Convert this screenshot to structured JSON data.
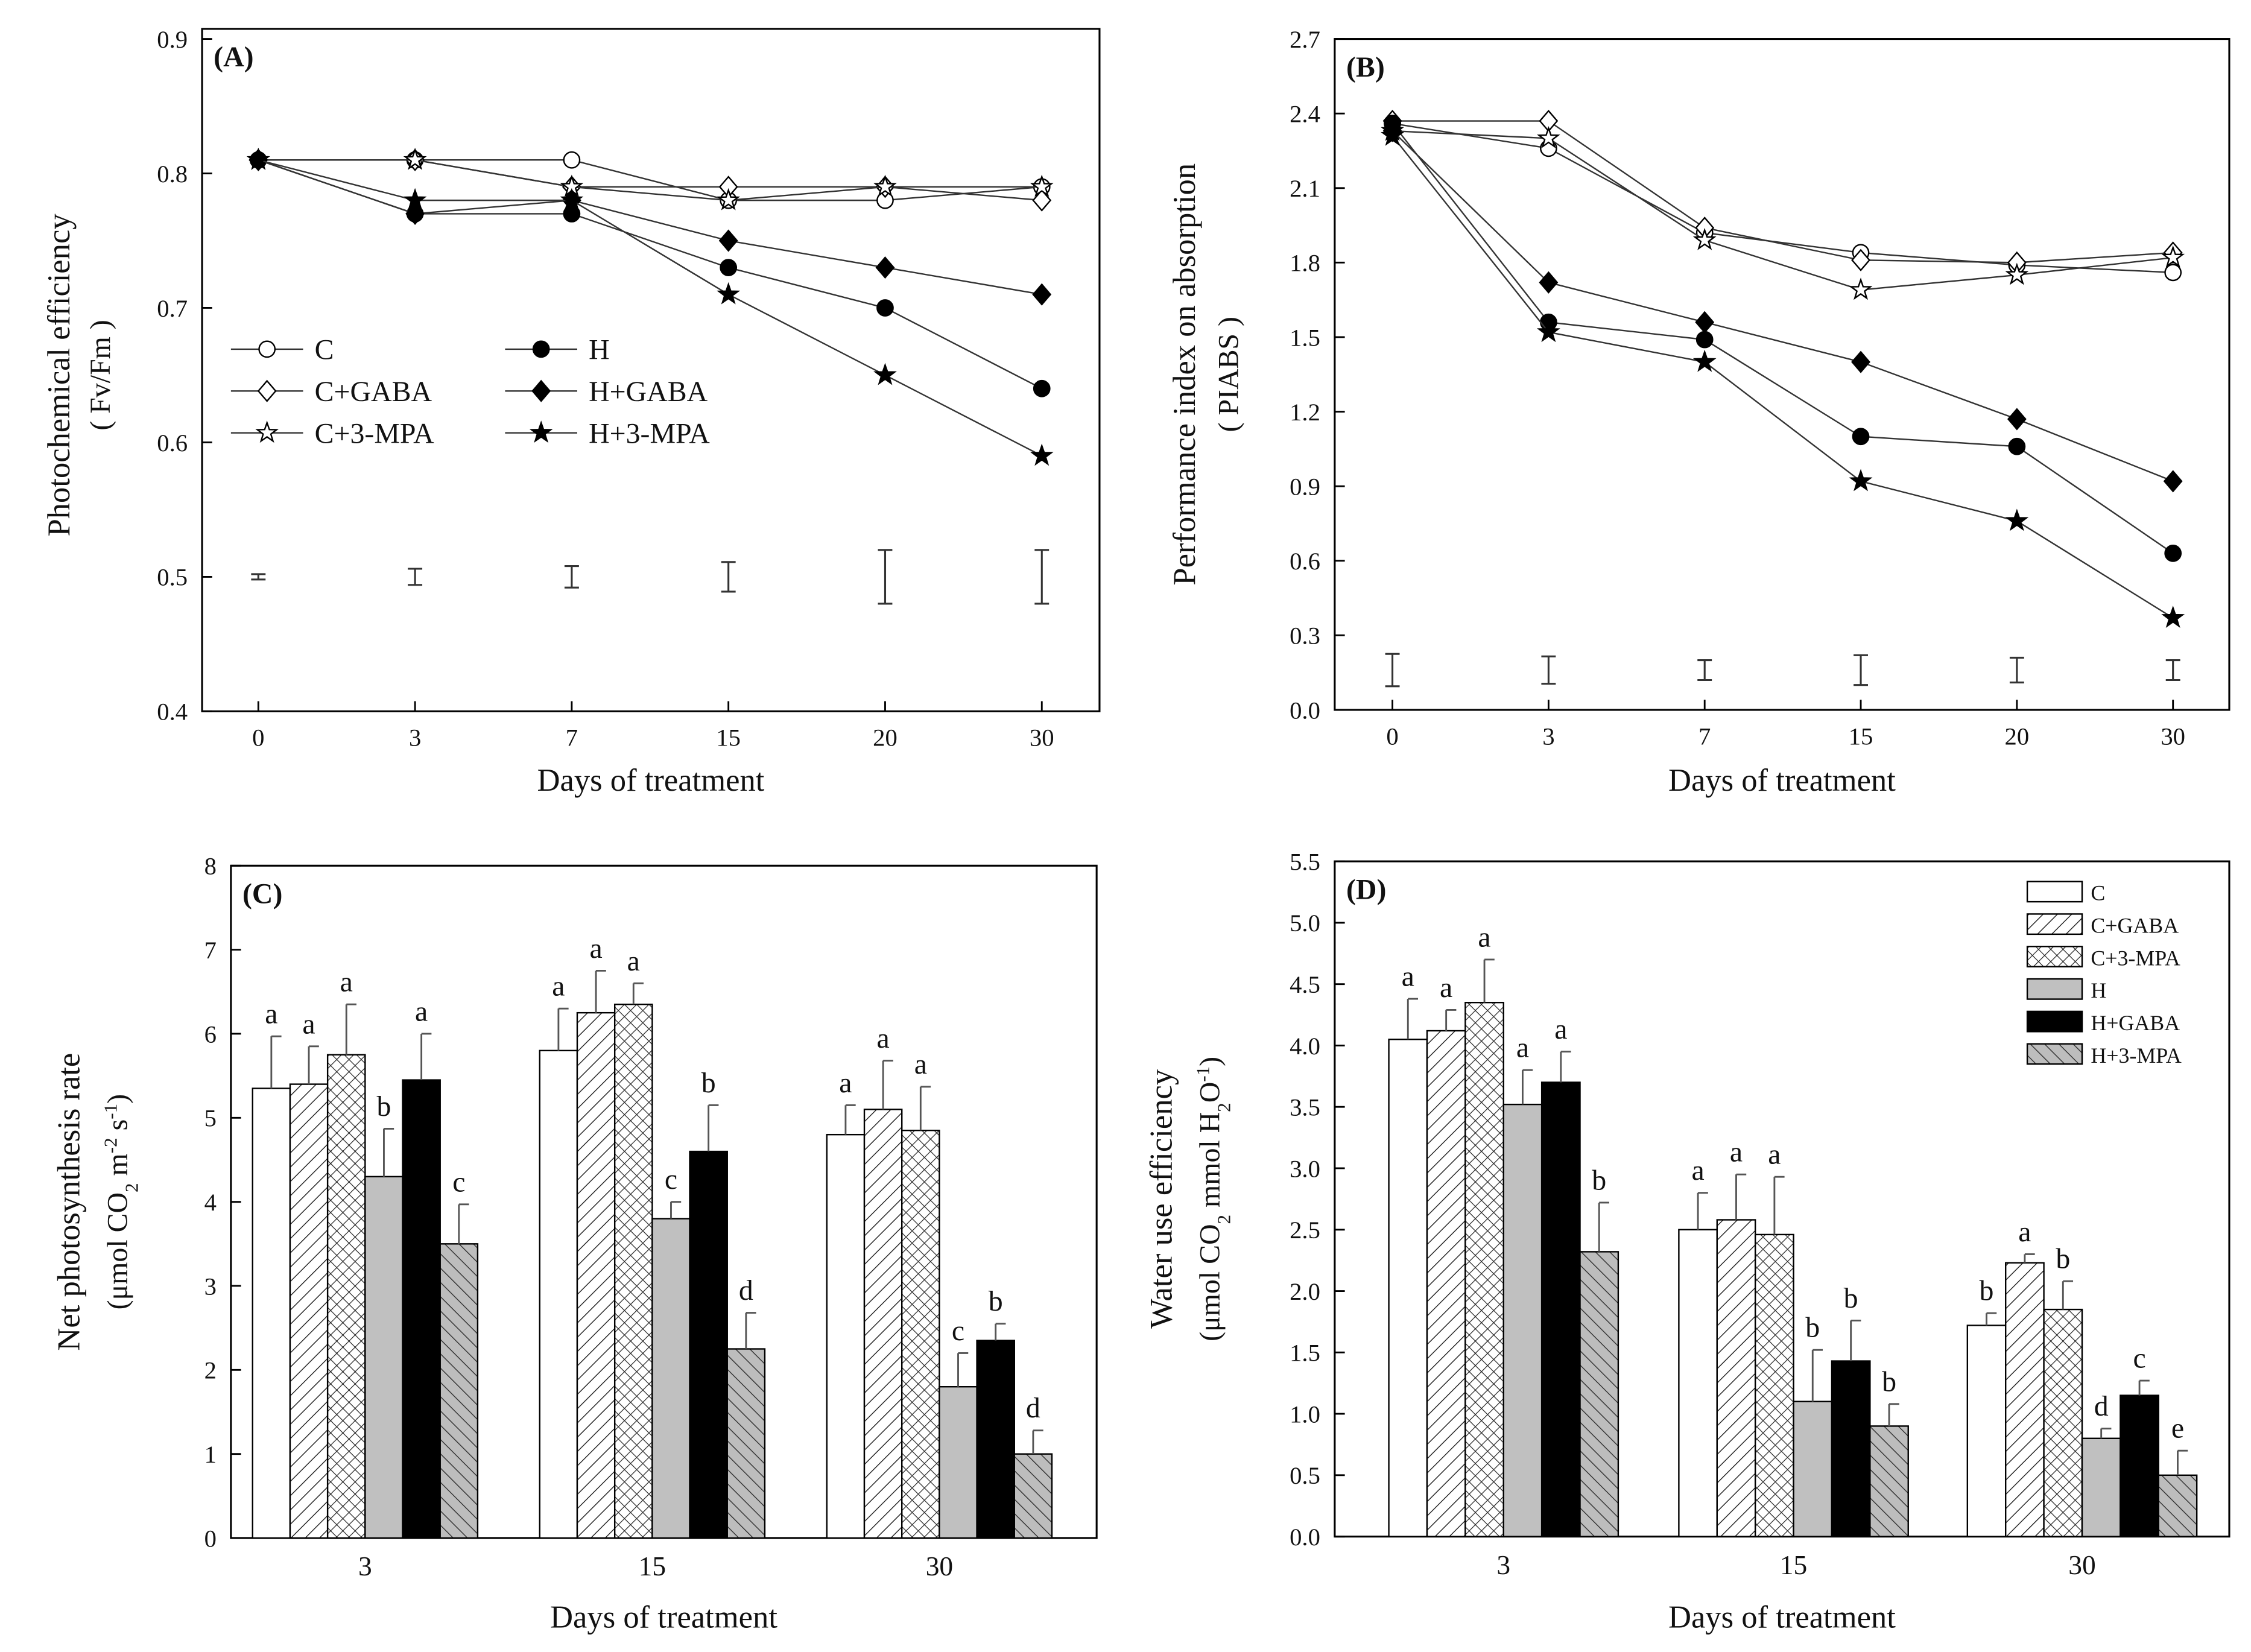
{
  "chart_data": [
    {
      "type": "line",
      "panel_label": "(A)",
      "xlabel": "Days of treatment",
      "ylabel": [
        "Photochemical efficiency",
        "( Fv/Fm )"
      ],
      "x": [
        "0",
        "3",
        "7",
        "15",
        "20",
        "30"
      ],
      "ylim": [
        0.4,
        0.9
      ],
      "yticks": [
        "0.4",
        "0.5",
        "0.6",
        "0.7",
        "0.8",
        "0.9"
      ],
      "legend_position": "middle-left",
      "series": [
        {
          "name": "C",
          "marker": "circle-open",
          "values": [
            0.81,
            0.81,
            0.81,
            0.78,
            0.78,
            0.79
          ]
        },
        {
          "name": "C+GABA",
          "marker": "diamond-open",
          "values": [
            0.81,
            0.81,
            0.79,
            0.79,
            0.79,
            0.78
          ]
        },
        {
          "name": "C+3-MPA",
          "marker": "star-open",
          "values": [
            0.81,
            0.81,
            0.79,
            0.78,
            0.79,
            0.79
          ]
        },
        {
          "name": "H",
          "marker": "circle-filled",
          "values": [
            0.81,
            0.77,
            0.77,
            0.73,
            0.7,
            0.64
          ]
        },
        {
          "name": "H+GABA",
          "marker": "diamond-filled",
          "values": [
            0.81,
            0.77,
            0.78,
            0.75,
            0.73,
            0.71
          ]
        },
        {
          "name": "H+3-MPA",
          "marker": "star-filled",
          "values": [
            0.81,
            0.78,
            0.78,
            0.71,
            0.65,
            0.59
          ]
        }
      ],
      "error_bars": {
        "center": 0.5,
        "half": [
          0.002,
          0.006,
          0.008,
          0.011,
          0.02,
          0.02
        ]
      }
    },
    {
      "type": "line",
      "panel_label": "(B)",
      "xlabel": "Days of treatment",
      "ylabel": [
        "Performance index on absorption",
        "( PIABS )"
      ],
      "x": [
        "0",
        "3",
        "7",
        "15",
        "20",
        "30"
      ],
      "ylim": [
        0,
        2.7
      ],
      "yticks": [
        "0.0",
        "0.3",
        "0.6",
        "0.9",
        "1.2",
        "1.5",
        "1.8",
        "2.1",
        "2.4",
        "2.7"
      ],
      "series": [
        {
          "name": "C",
          "marker": "circle-open",
          "values": [
            2.36,
            2.26,
            1.92,
            1.84,
            1.79,
            1.76
          ]
        },
        {
          "name": "C+GABA",
          "marker": "diamond-open",
          "values": [
            2.37,
            2.37,
            1.94,
            1.81,
            1.8,
            1.84
          ]
        },
        {
          "name": "C+3-MPA",
          "marker": "star-open",
          "values": [
            2.33,
            2.3,
            1.89,
            1.69,
            1.75,
            1.82
          ]
        },
        {
          "name": "H",
          "marker": "circle-filled",
          "values": [
            2.36,
            1.56,
            1.49,
            1.1,
            1.06,
            0.63
          ]
        },
        {
          "name": "H+GABA",
          "marker": "diamond-filled",
          "values": [
            2.33,
            1.72,
            1.56,
            1.4,
            1.17,
            0.92
          ]
        },
        {
          "name": "H+3-MPA",
          "marker": "star-filled",
          "values": [
            2.31,
            1.52,
            1.4,
            0.92,
            0.76,
            0.37
          ]
        }
      ],
      "error_bars": {
        "center": 0.16,
        "half": [
          0.065,
          0.055,
          0.04,
          0.06,
          0.05,
          0.04
        ]
      }
    },
    {
      "type": "bar",
      "panel_label": "(C)",
      "xlabel": "Days of treatment",
      "ylabel": [
        "Net photosynthesis rate",
        "(μmol CO",
        "2",
        " m",
        "-2",
        " s",
        "-1",
        ")"
      ],
      "categories": [
        "3",
        "15",
        "30"
      ],
      "ylim": [
        0,
        8
      ],
      "yticks": [
        "0",
        "1",
        "2",
        "3",
        "4",
        "5",
        "6",
        "7",
        "8"
      ],
      "series": [
        {
          "name": "C",
          "fill": "white",
          "values": [
            5.35,
            5.8,
            4.8
          ],
          "errors": [
            0.62,
            0.5,
            0.35
          ],
          "letters": [
            "a",
            "a",
            "a"
          ]
        },
        {
          "name": "C+GABA",
          "fill": "hatch",
          "values": [
            5.4,
            6.25,
            5.1
          ],
          "errors": [
            0.45,
            0.5,
            0.58
          ],
          "letters": [
            "a",
            "a",
            "a"
          ]
        },
        {
          "name": "C+3-MPA",
          "fill": "crosshatch",
          "values": [
            5.75,
            6.35,
            4.85
          ],
          "errors": [
            0.6,
            0.25,
            0.52
          ],
          "letters": [
            "a",
            "a",
            "a"
          ]
        },
        {
          "name": "H",
          "fill": "gray",
          "values": [
            4.3,
            3.8,
            1.8
          ],
          "errors": [
            0.57,
            0.2,
            0.4
          ],
          "letters": [
            "b",
            "c",
            "c"
          ]
        },
        {
          "name": "H+GABA",
          "fill": "black",
          "values": [
            5.45,
            4.6,
            2.35
          ],
          "errors": [
            0.55,
            0.55,
            0.2
          ],
          "letters": [
            "a",
            "b",
            "b"
          ]
        },
        {
          "name": "H+3-MPA",
          "fill": "gray-hatch",
          "values": [
            3.5,
            2.25,
            1.0
          ],
          "errors": [
            0.47,
            0.43,
            0.28
          ],
          "letters": [
            "c",
            "d",
            "d"
          ]
        }
      ]
    },
    {
      "type": "bar",
      "panel_label": "(D)",
      "xlabel": "Days of treatment",
      "ylabel": [
        "Water use efficiency",
        "(μmol CO",
        "2",
        " mmol H",
        "2",
        "O",
        "-1",
        ")"
      ],
      "categories": [
        "3",
        "15",
        "30"
      ],
      "ylim": [
        0,
        5.5
      ],
      "yticks": [
        "0.0",
        "0.5",
        "1.0",
        "1.5",
        "2.0",
        "2.5",
        "3.0",
        "3.5",
        "4.0",
        "4.5",
        "5.0",
        "5.5"
      ],
      "legend_position": "top-right",
      "series": [
        {
          "name": "C",
          "fill": "white",
          "values": [
            4.05,
            2.5,
            1.72
          ],
          "errors": [
            0.33,
            0.3,
            0.1
          ],
          "letters": [
            "a",
            "a",
            "b"
          ]
        },
        {
          "name": "C+GABA",
          "fill": "hatch",
          "values": [
            4.12,
            2.58,
            2.23
          ],
          "errors": [
            0.17,
            0.37,
            0.07
          ],
          "letters": [
            "a",
            "a",
            "a"
          ]
        },
        {
          "name": "C+3-MPA",
          "fill": "crosshatch",
          "values": [
            4.35,
            2.46,
            1.85
          ],
          "errors": [
            0.35,
            0.47,
            0.23
          ],
          "letters": [
            "a",
            "a",
            "b"
          ]
        },
        {
          "name": "H",
          "fill": "gray",
          "values": [
            3.52,
            1.1,
            0.8
          ],
          "errors": [
            0.28,
            0.42,
            0.08
          ],
          "letters": [
            "a",
            "b",
            "d"
          ]
        },
        {
          "name": "H+GABA",
          "fill": "black",
          "values": [
            3.7,
            1.43,
            1.15
          ],
          "errors": [
            0.25,
            0.33,
            0.12
          ],
          "letters": [
            "a",
            "b",
            "c"
          ]
        },
        {
          "name": "H+3-MPA",
          "fill": "gray-hatch",
          "values": [
            2.32,
            0.9,
            0.5
          ],
          "errors": [
            0.4,
            0.18,
            0.2
          ],
          "letters": [
            "b",
            "b",
            "e"
          ]
        }
      ]
    }
  ]
}
